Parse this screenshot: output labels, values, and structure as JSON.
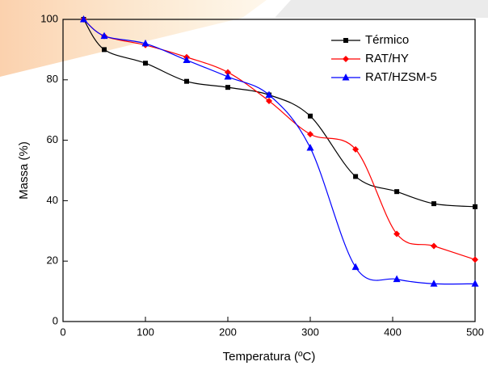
{
  "chart_data": {
    "type": "line",
    "xlabel": "Temperatura (ºC)",
    "ylabel": "Massa (%)",
    "x": [
      25,
      50,
      100,
      150,
      200,
      250,
      300,
      355,
      405,
      450,
      500
    ],
    "series": [
      {
        "name": "Térmico",
        "color": "#000000",
        "marker": "square",
        "values": [
          100,
          90,
          85.5,
          79.5,
          77.5,
          75,
          68,
          48,
          43,
          39,
          38
        ]
      },
      {
        "name": "RAT/HY",
        "color": "#ff0000",
        "marker": "diamond",
        "values": [
          100,
          94.5,
          91.5,
          87.5,
          82.5,
          73,
          62,
          57,
          29,
          25,
          20.5
        ]
      },
      {
        "name": "RAT/HZSM-5",
        "color": "#0000ff",
        "marker": "triangle",
        "values": [
          100,
          94.5,
          92,
          86.5,
          81,
          75,
          57.5,
          18,
          14,
          12.5,
          12.5
        ]
      }
    ],
    "xlim": [
      0,
      500
    ],
    "xticks": [
      0,
      100,
      200,
      300,
      400,
      500
    ],
    "ylim": [
      0,
      100
    ],
    "yticks": [
      0,
      20,
      40,
      60,
      80,
      100
    ],
    "legend": "upper right"
  }
}
